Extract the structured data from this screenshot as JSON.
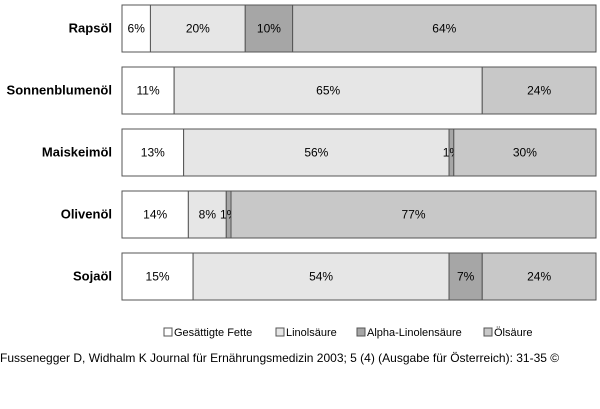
{
  "chart_data": {
    "type": "bar",
    "orientation": "horizontal",
    "stacked": true,
    "percent_stacked": true,
    "categories": [
      "Rapsöl",
      "Sonnenblumenöl",
      "Maiskeimöl",
      "Olivenöl",
      "Sojaöl"
    ],
    "series": [
      {
        "name": "Gesättigte Fette",
        "values": [
          6,
          11,
          13,
          14,
          15
        ],
        "color": "#ffffff"
      },
      {
        "name": "Linolsäure",
        "values": [
          20,
          65,
          56,
          8,
          54
        ],
        "color": "#e6e6e6"
      },
      {
        "name": "Alpha-Linolensäure",
        "values": [
          10,
          0,
          1,
          1,
          7
        ],
        "color": "#a6a6a6"
      },
      {
        "name": "Ölsäure",
        "values": [
          64,
          24,
          30,
          77,
          24
        ],
        "color": "#c8c8c8"
      }
    ],
    "data_labels": [
      [
        "6%",
        "20%",
        "10%",
        "64%"
      ],
      [
        "11%",
        "65%",
        "",
        "24%"
      ],
      [
        "13%",
        "56%",
        "1%",
        "30%"
      ],
      [
        "14%",
        "8%",
        "1%",
        "77%"
      ],
      [
        "15%",
        "54%",
        "7%",
        "24%"
      ]
    ],
    "legend": {
      "position": "bottom"
    },
    "grid": false
  },
  "caption": "Fussenegger D, Widhalm K Journal für Ernährungsmedizin 2003; 5 (4) (Ausgabe für Österreich): 31-35 ©"
}
